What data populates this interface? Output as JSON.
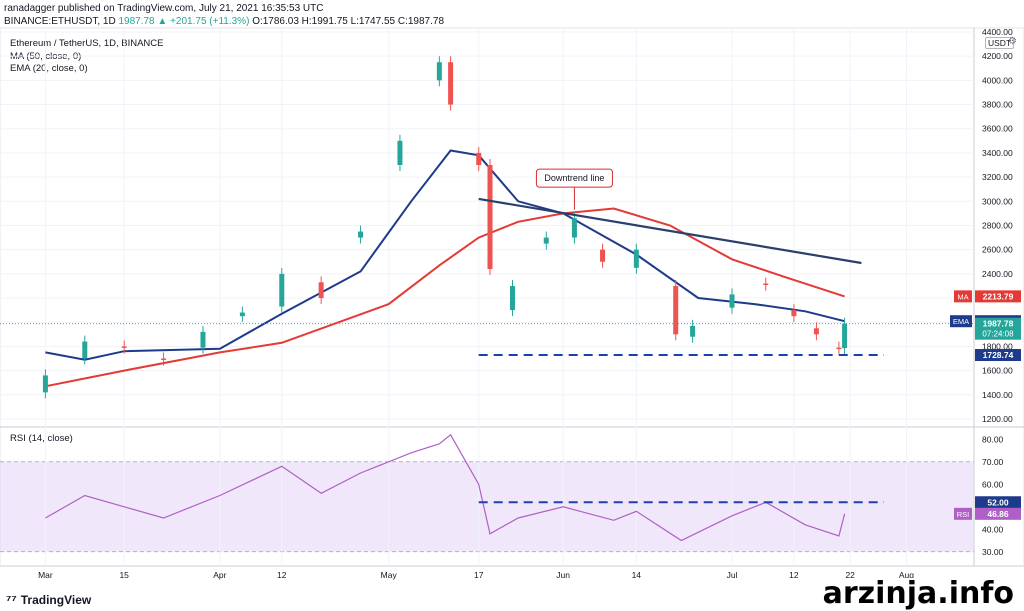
{
  "header": {
    "line1": "ranadagger published on TradingView.com, July 21, 2021 16:35:53 UTC",
    "symbol": "BINANCE:ETHUSDT, 1D",
    "last": "1987.78",
    "change": "▲ +201.75 (+11.3%)",
    "ohlc": "O:1786.03 H:1991.75 L:1747.55 C:1987.78"
  },
  "legend": {
    "title": "Ethereum / TetherUS, 1D, BINANCE",
    "ma": "MA (50, close, 0)",
    "ema": "EMA (20, close, 0)"
  },
  "rsi_legend": "RSI (14, close)",
  "currency": "USDT",
  "footer": {
    "brand": "TradingView"
  },
  "watermark": "arzinja.info",
  "colors": {
    "up": "#26a69a",
    "down": "#ef5350",
    "ma": "#e53935",
    "ema": "#1e3a8a",
    "trend": "#2a3f6e",
    "support": "#1e40af",
    "rsi": "#b05fc6",
    "rsi_band": "#e6d4f7"
  },
  "chart_data": [
    {
      "type": "candlestick",
      "title": "Ethereum / TetherUS, 1D, BINANCE",
      "ylim": [
        1150,
        4400
      ],
      "y_ticks": [
        1200,
        1400,
        1600,
        1800,
        2000,
        2200,
        2400,
        2600,
        2800,
        3000,
        3200,
        3400,
        3600,
        3800,
        4000,
        4200,
        4400
      ],
      "x_tick_labels": [
        "Mar",
        "15",
        "Apr",
        "12",
        "May",
        "17",
        "Jun",
        "14",
        "Jul",
        "12",
        "22",
        "Aug"
      ],
      "x_tick_dates": [
        "2021-03-01",
        "2021-03-15",
        "2021-04-01",
        "2021-04-12",
        "2021-05-01",
        "2021-05-17",
        "2021-06-01",
        "2021-06-14",
        "2021-07-01",
        "2021-07-12",
        "2021-07-22",
        "2021-08-01"
      ],
      "series": [
        {
          "name": "ETHUSDT",
          "points": [
            [
              "2021-03-01",
              1420,
              1560
            ],
            [
              "2021-03-08",
              1700,
              1840
            ],
            [
              "2021-03-15",
              1800,
              1790
            ],
            [
              "2021-03-22",
              1700,
              1690
            ],
            [
              "2021-03-29",
              1790,
              1920
            ],
            [
              "2021-04-05",
              2050,
              2080
            ],
            [
              "2021-04-12",
              2130,
              2400
            ],
            [
              "2021-04-19",
              2330,
              2200
            ],
            [
              "2021-04-26",
              2700,
              2750
            ],
            [
              "2021-05-03",
              3300,
              3500
            ],
            [
              "2021-05-10",
              4000,
              4150
            ],
            [
              "2021-05-12",
              4150,
              3800
            ],
            [
              "2021-05-17",
              3400,
              3300
            ],
            [
              "2021-05-19",
              3300,
              2440
            ],
            [
              "2021-05-23",
              2100,
              2300
            ],
            [
              "2021-05-29",
              2650,
              2700
            ],
            [
              "2021-06-03",
              2700,
              2860
            ],
            [
              "2021-06-08",
              2600,
              2500
            ],
            [
              "2021-06-14",
              2450,
              2600
            ],
            [
              "2021-06-21",
              2300,
              1900
            ],
            [
              "2021-06-24",
              1880,
              1970
            ],
            [
              "2021-07-01",
              2120,
              2230
            ],
            [
              "2021-07-07",
              2320,
              2310
            ],
            [
              "2021-07-12",
              2100,
              2050
            ],
            [
              "2021-07-16",
              1950,
              1900
            ],
            [
              "2021-07-20",
              1790,
              1786
            ],
            [
              "2021-07-21",
              1786.03,
              1987.78
            ]
          ]
        },
        {
          "name": "MA (50, close, 0)",
          "points": [
            [
              "2021-03-01",
              1470
            ],
            [
              "2021-03-15",
              1600
            ],
            [
              "2021-04-01",
              1750
            ],
            [
              "2021-04-12",
              1830
            ],
            [
              "2021-05-01",
              2150
            ],
            [
              "2021-05-10",
              2470
            ],
            [
              "2021-05-17",
              2700
            ],
            [
              "2021-05-24",
              2830
            ],
            [
              "2021-06-01",
              2900
            ],
            [
              "2021-06-10",
              2940
            ],
            [
              "2021-06-20",
              2800
            ],
            [
              "2021-07-01",
              2520
            ],
            [
              "2021-07-10",
              2380
            ],
            [
              "2021-07-21",
              2213.79
            ]
          ]
        },
        {
          "name": "EMA (20, close, 0)",
          "points": [
            [
              "2021-03-01",
              1750
            ],
            [
              "2021-03-08",
              1690
            ],
            [
              "2021-03-15",
              1760
            ],
            [
              "2021-04-01",
              1780
            ],
            [
              "2021-04-12",
              2070
            ],
            [
              "2021-04-26",
              2420
            ],
            [
              "2021-05-05",
              3000
            ],
            [
              "2021-05-12",
              3420
            ],
            [
              "2021-05-17",
              3380
            ],
            [
              "2021-05-24",
              3000
            ],
            [
              "2021-06-01",
              2900
            ],
            [
              "2021-06-14",
              2560
            ],
            [
              "2021-06-25",
              2200
            ],
            [
              "2021-07-05",
              2150
            ],
            [
              "2021-07-14",
              2090
            ],
            [
              "2021-07-21",
              2008.29
            ]
          ]
        },
        {
          "name": "Downtrend line",
          "points": [
            [
              "2021-05-17",
              3020
            ],
            [
              "2021-07-24",
              2490
            ]
          ]
        },
        {
          "name": "Support",
          "points": [
            [
              "2021-05-17",
              1728.74
            ],
            [
              "2021-07-28",
              1728.74
            ]
          ]
        }
      ],
      "annotations": [
        "Downtrend line"
      ],
      "price_labels": [
        {
          "name": "MA",
          "value": "2213.79"
        },
        {
          "name": "EMA",
          "value": "2008.29"
        },
        {
          "name": "last",
          "value": "1987.78",
          "sub": "07:24:08"
        },
        {
          "name": "support",
          "value": "1728.74"
        }
      ]
    },
    {
      "type": "line",
      "title": "RSI (14, close)",
      "ylim": [
        25,
        85
      ],
      "y_ticks": [
        30,
        40,
        50,
        60,
        70,
        80
      ],
      "band": [
        30,
        70
      ],
      "series": [
        {
          "name": "RSI",
          "points": [
            [
              "2021-03-01",
              45
            ],
            [
              "2021-03-08",
              55
            ],
            [
              "2021-03-15",
              50
            ],
            [
              "2021-03-22",
              45
            ],
            [
              "2021-04-01",
              55
            ],
            [
              "2021-04-12",
              68
            ],
            [
              "2021-04-19",
              56
            ],
            [
              "2021-04-26",
              65
            ],
            [
              "2021-05-05",
              74
            ],
            [
              "2021-05-10",
              78
            ],
            [
              "2021-05-12",
              82
            ],
            [
              "2021-05-17",
              60
            ],
            [
              "2021-05-19",
              38
            ],
            [
              "2021-05-24",
              45
            ],
            [
              "2021-06-01",
              50
            ],
            [
              "2021-06-10",
              44
            ],
            [
              "2021-06-14",
              48
            ],
            [
              "2021-06-22",
              35
            ],
            [
              "2021-07-01",
              46
            ],
            [
              "2021-07-07",
              52
            ],
            [
              "2021-07-14",
              42
            ],
            [
              "2021-07-20",
              37
            ],
            [
              "2021-07-21",
              46.86
            ]
          ]
        },
        {
          "name": "RSI level",
          "points": [
            [
              "2021-05-17",
              52
            ],
            [
              "2021-07-28",
              52
            ]
          ]
        }
      ],
      "price_labels": [
        {
          "name": "level",
          "value": "52.00"
        },
        {
          "name": "RSI",
          "value": "46.86"
        }
      ]
    }
  ]
}
